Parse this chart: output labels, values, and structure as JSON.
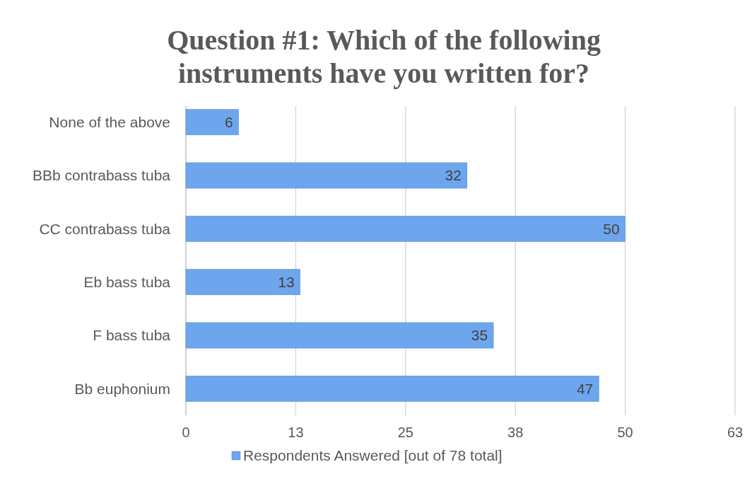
{
  "chart_data": {
    "type": "bar",
    "orientation": "horizontal",
    "title": "Question #1: Which of the following instruments have you written for?",
    "categories": [
      "None of the above",
      "BBb contrabass tuba",
      "CC contrabass tuba",
      "Eb bass tuba",
      "F bass tuba",
      "Bb euphonium"
    ],
    "series": [
      {
        "name": "Respondents Answered [out of 78 total]",
        "color": "#6ea6ee",
        "values": [
          6,
          32,
          50,
          13,
          35,
          47
        ]
      }
    ],
    "xlim": [
      0,
      62.5
    ],
    "xticks": [
      0,
      {
        "value": 12.5,
        "label": "13"
      },
      25,
      {
        "value": 37.5,
        "label": "38"
      },
      50,
      {
        "value": 62.5,
        "label": "63"
      }
    ],
    "grid": "x",
    "legend": "bottom",
    "data_labels": true
  }
}
